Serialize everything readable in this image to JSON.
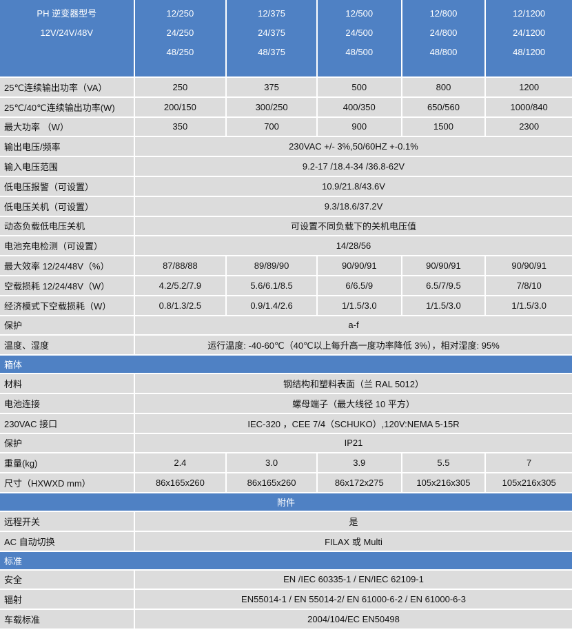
{
  "header": {
    "label_lines": [
      "PH 逆变器型号",
      "12V/24V/48V"
    ],
    "models": [
      [
        "12/250",
        "24/250",
        "48/250"
      ],
      [
        "12/375",
        "24/375",
        "48/375"
      ],
      [
        "12/500",
        "24/500",
        "48/500"
      ],
      [
        "12/800",
        "24/800",
        "48/800"
      ],
      [
        "12/1200",
        "24/1200",
        "48/1200"
      ]
    ]
  },
  "rows": [
    {
      "label": "25℃连续输出功率（VA）",
      "values": [
        "250",
        "375",
        "500",
        "800",
        "1200"
      ]
    },
    {
      "label": "25℃/40℃连续输出功率(W)",
      "values": [
        "200/150",
        "300/250",
        "400/350",
        "650/560",
        "1000/840"
      ]
    },
    {
      "label": "最大功率 （W）",
      "values": [
        "350",
        "700",
        "900",
        "1500",
        "2300"
      ]
    },
    {
      "label": "输出电压/频率",
      "span": "230VAC +/- 3%,50/60HZ +-0.1%"
    },
    {
      "label": "输入电压范围",
      "span": "9.2-17 /18.4-34 /36.8-62V"
    },
    {
      "label": "低电压报警（可设置）",
      "span": "10.9/21.8/43.6V"
    },
    {
      "label": "低电压关机（可设置）",
      "span": "9.3/18.6/37.2V"
    },
    {
      "label": "动态负载低电压关机",
      "span": "可设置不同负载下的关机电压值"
    },
    {
      "label": "电池充电检测（可设置）",
      "span": "14/28/56"
    },
    {
      "label": "最大效率 12/24/48V（%）",
      "values": [
        "87/88/88",
        "89/89/90",
        "90/90/91",
        "90/90/91",
        "90/90/91"
      ]
    },
    {
      "label": "空载损耗 12/24/48V（W）",
      "values": [
        "4.2/5.2/7.9",
        "5.6/6.1/8.5",
        "6/6.5/9",
        "6.5/7/9.5",
        "7/8/10"
      ]
    },
    {
      "label": "经济模式下空载损耗（W）",
      "values": [
        "0.8/1.3/2.5",
        "0.9/1.4/2.6",
        "1/1.5/3.0",
        "1/1.5/3.0",
        "1/1.5/3.0"
      ]
    },
    {
      "label": "保护",
      "span": "a-f"
    },
    {
      "label": "温度、湿度",
      "span": "运行温度: -40-60℃（40℃以上每升高一度功率降低 3%），相对湿度: 95%"
    },
    {
      "section": "箱体",
      "align": "left"
    },
    {
      "label": "材料",
      "span": "钢结构和塑料表面（兰 RAL 5012）"
    },
    {
      "label": "电池连接",
      "span": "螺母端子（最大线径 10 平方）"
    },
    {
      "label": "230VAC 接口",
      "span": "IEC-320 ，CEE 7/4（SCHUKO）,120V:NEMA 5-15R"
    },
    {
      "label": "保护",
      "span": "IP21"
    },
    {
      "label": "重量(kg)",
      "values": [
        "2.4",
        "3.0",
        "3.9",
        "5.5",
        "7"
      ]
    },
    {
      "label": "尺寸（HXWXD mm）",
      "values": [
        "86x165x260",
        "86x165x260",
        "86x172x275",
        "105x216x305",
        "105x216x305"
      ]
    },
    {
      "section": "附件",
      "align": "center"
    },
    {
      "label": "远程开关",
      "span": "是"
    },
    {
      "label": "AC 自动切换",
      "span": "FILAX 或 Multi"
    },
    {
      "section": "标准",
      "align": "left"
    },
    {
      "label": "安全",
      "span": "EN /IEC 60335-1 / EN/IEC 62109-1"
    },
    {
      "label": "辐射",
      "span": "EN55014-1 / EN 55014-2/ EN 61000-6-2 / EN 61000-6-3"
    },
    {
      "label": "车载标准",
      "span": "2004/104/EC EN50498"
    }
  ]
}
